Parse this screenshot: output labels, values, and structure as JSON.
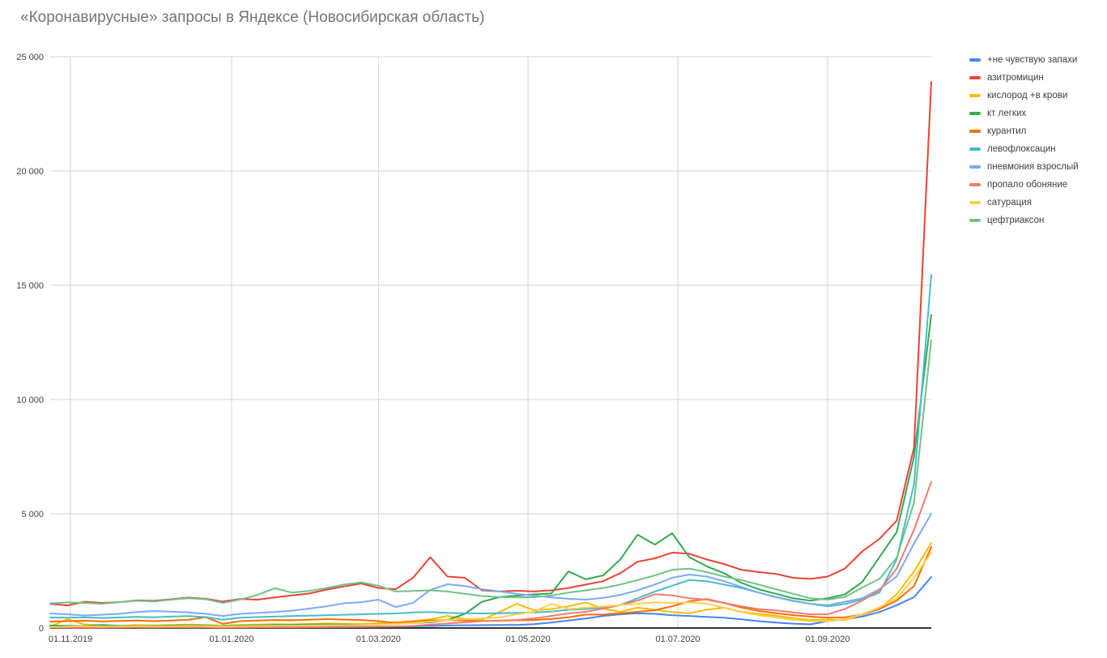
{
  "title": "«Коронавирусные» запросы в Яндексе (Новосибирская область)",
  "chart_data": {
    "type": "line",
    "title": "«Коронавирусные» запросы в Яндексе (Новосибирская область)",
    "xlabel": "",
    "ylabel": "",
    "ylim": [
      0,
      25000
    ],
    "grid": true,
    "legend_position": "right",
    "x_unit": "weekly samples, index 0–51",
    "x_points": 52,
    "x_ticks": [
      {
        "label": "01.11.2019",
        "week_pos": 1.17
      },
      {
        "label": "01.01.2020",
        "week_pos": 10.5
      },
      {
        "label": "01.03.2020",
        "week_pos": 19.0
      },
      {
        "label": "01.05.2020",
        "week_pos": 27.66
      },
      {
        "label": "01.07.2020",
        "week_pos": 36.33
      },
      {
        "label": "01.09.2020",
        "week_pos": 45.0
      }
    ],
    "y_ticks": [
      {
        "value": 0,
        "label": "0"
      },
      {
        "value": 5000,
        "label": "5 000"
      },
      {
        "value": 10000,
        "label": "10 000"
      },
      {
        "value": 15000,
        "label": "15 000"
      },
      {
        "value": 20000,
        "label": "20 000"
      },
      {
        "value": 25000,
        "label": "25 000"
      }
    ],
    "series": [
      {
        "name": "+не чувствую запахи",
        "color": "#4285F4",
        "values": [
          30,
          25,
          20,
          25,
          30,
          35,
          30,
          35,
          40,
          35,
          25,
          30,
          35,
          40,
          40,
          45,
          50,
          55,
          60,
          60,
          65,
          70,
          90,
          110,
          120,
          125,
          130,
          130,
          170,
          240,
          330,
          415,
          530,
          600,
          650,
          620,
          560,
          530,
          490,
          450,
          380,
          300,
          240,
          190,
          160,
          300,
          390,
          500,
          700,
          1000,
          1350,
          2230
        ]
      },
      {
        "name": "азитромицин",
        "color": "#EA4335",
        "values": [
          1060,
          990,
          1150,
          1100,
          1130,
          1210,
          1190,
          1260,
          1330,
          1280,
          1160,
          1270,
          1240,
          1340,
          1430,
          1510,
          1680,
          1820,
          1950,
          1750,
          1700,
          2200,
          3100,
          2250,
          2200,
          1650,
          1600,
          1630,
          1600,
          1650,
          1750,
          1900,
          2050,
          2400,
          2900,
          3050,
          3300,
          3250,
          3000,
          2800,
          2550,
          2450,
          2370,
          2200,
          2150,
          2250,
          2600,
          3350,
          3900,
          4700,
          7900,
          23900
        ]
      },
      {
        "name": "кислород +в крови",
        "color": "#FBBC04",
        "values": [
          60,
          390,
          150,
          120,
          100,
          130,
          110,
          130,
          150,
          130,
          100,
          130,
          150,
          170,
          160,
          180,
          200,
          190,
          180,
          200,
          250,
          300,
          380,
          530,
          400,
          355,
          700,
          1060,
          780,
          830,
          950,
          1120,
          850,
          710,
          890,
          800,
          700,
          640,
          800,
          890,
          710,
          620,
          540,
          430,
          350,
          370,
          355,
          590,
          830,
          1480,
          2480,
          3720
        ]
      },
      {
        "name": "кт легких",
        "color": "#34A853",
        "values": [
          110,
          100,
          90,
          130,
          100,
          90,
          100,
          110,
          120,
          110,
          90,
          110,
          120,
          130,
          140,
          150,
          160,
          150,
          140,
          160,
          180,
          220,
          250,
          350,
          620,
          1150,
          1350,
          1420,
          1470,
          1510,
          2480,
          2130,
          2300,
          3000,
          4080,
          3650,
          4150,
          3100,
          2700,
          2400,
          1980,
          1700,
          1500,
          1300,
          1200,
          1300,
          1470,
          2010,
          3100,
          4200,
          7500,
          13700
        ]
      },
      {
        "name": "курантил",
        "color": "#FF6D01",
        "values": [
          280,
          300,
          320,
          290,
          310,
          330,
          300,
          330,
          360,
          470,
          180,
          300,
          330,
          350,
          340,
          360,
          390,
          370,
          350,
          300,
          220,
          280,
          330,
          350,
          330,
          310,
          320,
          340,
          350,
          400,
          470,
          590,
          590,
          650,
          710,
          780,
          950,
          1170,
          1270,
          1100,
          900,
          750,
          650,
          565,
          500,
          450,
          470,
          590,
          830,
          1200,
          1840,
          3545
        ]
      },
      {
        "name": "левофлоксацин",
        "color": "#46BDC6",
        "values": [
          460,
          450,
          470,
          440,
          460,
          490,
          470,
          500,
          520,
          480,
          360,
          450,
          480,
          500,
          520,
          540,
          560,
          580,
          600,
          620,
          640,
          680,
          700,
          660,
          650,
          640,
          650,
          660,
          680,
          720,
          800,
          830,
          900,
          1000,
          1300,
          1600,
          1850,
          2100,
          2050,
          1900,
          1750,
          1550,
          1360,
          1200,
          1060,
          950,
          1050,
          1250,
          1550,
          3000,
          6300,
          15450
        ]
      },
      {
        "name": "пневмония взрослый",
        "color": "#7BAAF7",
        "values": [
          640,
          600,
          550,
          580,
          620,
          700,
          740,
          720,
          680,
          620,
          530,
          620,
          660,
          700,
          760,
          850,
          950,
          1080,
          1130,
          1240,
          920,
          1100,
          1670,
          1915,
          1840,
          1700,
          1600,
          1500,
          1420,
          1340,
          1280,
          1240,
          1320,
          1450,
          1650,
          1900,
          2200,
          2340,
          2250,
          2050,
          1800,
          1550,
          1350,
          1180,
          1060,
          1000,
          1150,
          1300,
          1700,
          2250,
          3700,
          5000
        ]
      },
      {
        "name": "пропало обоняние",
        "color": "#F07B72",
        "values": [
          20,
          15,
          10,
          15,
          20,
          25,
          20,
          25,
          30,
          25,
          15,
          20,
          25,
          30,
          30,
          35,
          40,
          45,
          50,
          60,
          70,
          90,
          150,
          200,
          250,
          300,
          330,
          355,
          420,
          530,
          640,
          710,
          850,
          1000,
          1200,
          1480,
          1430,
          1300,
          1240,
          1100,
          950,
          830,
          770,
          680,
          600,
          600,
          830,
          1200,
          1650,
          2600,
          4300,
          6400
        ]
      },
      {
        "name": "сатурация",
        "color": "#FCD04F",
        "values": [
          40,
          60,
          80,
          60,
          70,
          80,
          70,
          80,
          90,
          80,
          60,
          80,
          90,
          100,
          100,
          110,
          120,
          120,
          130,
          150,
          180,
          220,
          280,
          350,
          390,
          420,
          460,
          600,
          710,
          1060,
          830,
          890,
          950,
          1000,
          1060,
          1120,
          1100,
          1120,
          1060,
          890,
          700,
          560,
          460,
          360,
          300,
          295,
          400,
          600,
          900,
          1300,
          2200,
          3300
        ]
      },
      {
        "name": "цефтриаксон",
        "color": "#71C287",
        "values": [
          1080,
          1120,
          1100,
          1060,
          1130,
          1190,
          1160,
          1240,
          1300,
          1260,
          1100,
          1250,
          1450,
          1740,
          1550,
          1620,
          1750,
          1900,
          2000,
          1850,
          1600,
          1620,
          1650,
          1600,
          1500,
          1400,
          1350,
          1340,
          1350,
          1420,
          1550,
          1650,
          1750,
          1900,
          2100,
          2300,
          2550,
          2600,
          2450,
          2250,
          2100,
          1900,
          1700,
          1500,
          1300,
          1240,
          1360,
          1770,
          2150,
          3070,
          5500,
          12600
        ]
      }
    ],
    "colors_meta": {
      "gridline": "#d4d4d4",
      "axis_baseline": "#333333",
      "title_text": "#757575",
      "axis_text": "#424242",
      "legend_text": "#3c4043"
    }
  }
}
